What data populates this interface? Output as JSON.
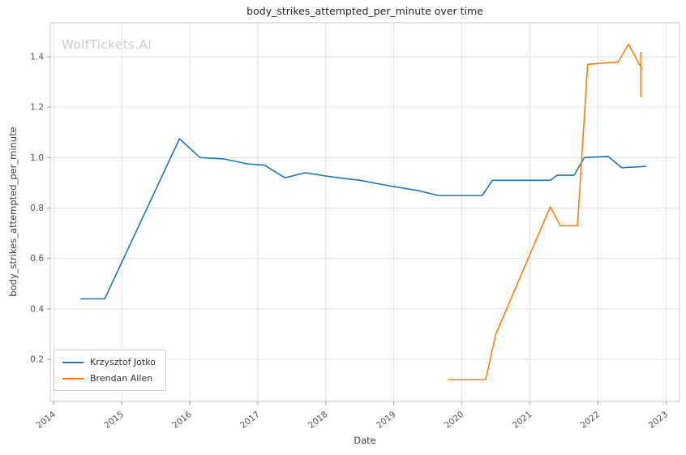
{
  "watermark": {
    "text": "WolfTickets.AI",
    "color": "#cccccc"
  },
  "chart_data": {
    "type": "line",
    "title": "body_strikes_attempted_per_minute over time",
    "xlabel": "Date",
    "ylabel": "body_strikes_attempted_per_minute",
    "xlim": [
      2013.95,
      2023.2
    ],
    "ylim": [
      0.033,
      1.535
    ],
    "x_ticks": [
      2014,
      2015,
      2016,
      2017,
      2018,
      2019,
      2020,
      2021,
      2022,
      2023
    ],
    "y_ticks": [
      0.2,
      0.4,
      0.6,
      0.8,
      1.0,
      1.2,
      1.4
    ],
    "grid": true,
    "legend_position": "lower left",
    "series": [
      {
        "name": "Krzysztof Jotko",
        "color": "#1f77b4",
        "points": [
          [
            2014.4,
            0.44
          ],
          [
            2014.75,
            0.44
          ],
          [
            2015.85,
            1.075
          ],
          [
            2016.15,
            1.0
          ],
          [
            2016.5,
            0.995
          ],
          [
            2016.85,
            0.975
          ],
          [
            2017.1,
            0.97
          ],
          [
            2017.4,
            0.92
          ],
          [
            2017.7,
            0.94
          ],
          [
            2018.05,
            0.925
          ],
          [
            2018.5,
            0.91
          ],
          [
            2019.0,
            0.885
          ],
          [
            2019.35,
            0.87
          ],
          [
            2019.65,
            0.85
          ],
          [
            2020.05,
            0.85
          ],
          [
            2020.3,
            0.85
          ],
          [
            2020.45,
            0.91
          ],
          [
            2021.0,
            0.91
          ],
          [
            2021.3,
            0.91
          ],
          [
            2021.4,
            0.93
          ],
          [
            2021.65,
            0.93
          ],
          [
            2021.8,
            1.0
          ],
          [
            2022.15,
            1.005
          ],
          [
            2022.35,
            0.96
          ],
          [
            2022.7,
            0.965
          ]
        ]
      },
      {
        "name": "Brendan Allen",
        "color": "#ff7f0e",
        "points": [
          [
            2019.8,
            0.12
          ],
          [
            2020.1,
            0.12
          ],
          [
            2020.35,
            0.12
          ],
          [
            2020.5,
            0.3
          ],
          [
            2021.3,
            0.805
          ],
          [
            2021.45,
            0.73
          ],
          [
            2021.7,
            0.73
          ],
          [
            2021.85,
            1.37
          ],
          [
            2022.1,
            1.375
          ],
          [
            2022.3,
            1.38
          ],
          [
            2022.45,
            1.45
          ],
          [
            2022.65,
            1.35
          ]
        ]
      }
    ],
    "annotations": [
      {
        "type": "vertical_tick",
        "x": 2022.63,
        "y1": 1.24,
        "y2": 1.42,
        "color": "#ff7f0e"
      }
    ]
  }
}
